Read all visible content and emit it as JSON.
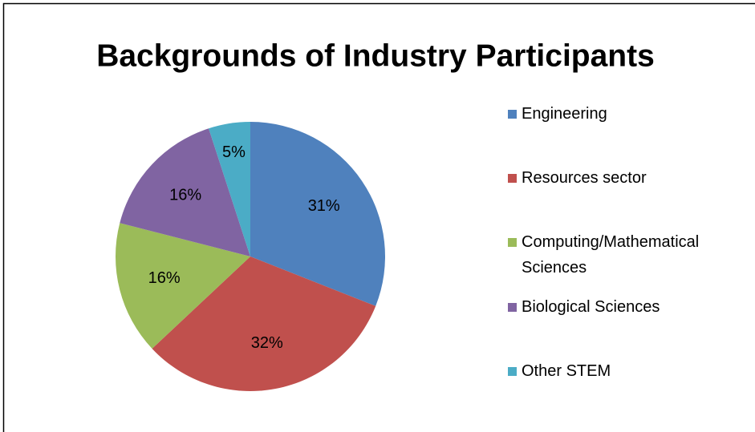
{
  "chart_data": {
    "type": "pie",
    "title": "Backgrounds of Industry Participants",
    "categories": [
      "Engineering",
      "Resources sector",
      "Computing/Mathematical Sciences",
      "Biological Sciences",
      "Other STEM"
    ],
    "values": [
      31,
      32,
      16,
      16,
      5
    ],
    "value_labels": [
      "31%",
      "32%",
      "16%",
      "16%",
      "5%"
    ],
    "colors": [
      "#4f81bd",
      "#c0504d",
      "#9bbb59",
      "#8064a2",
      "#4bacc6"
    ],
    "legend": "right"
  }
}
